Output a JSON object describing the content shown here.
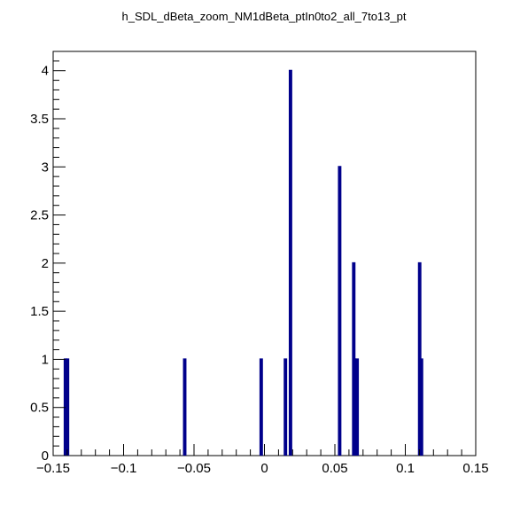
{
  "chart_data": {
    "type": "bar",
    "title": "h_SDL_dBeta_zoom_NM1dBeta_ptIn0to2_all_7to13_pt",
    "xlabel": "",
    "ylabel": "",
    "xlim": [
      -0.15,
      0.15
    ],
    "ylim": [
      0,
      4.2
    ],
    "xticks": [
      -0.15,
      -0.1,
      -0.05,
      0,
      0.05,
      0.1,
      0.15
    ],
    "xtick_labels": [
      "−0.15",
      "−0.1",
      "−0.05",
      "0",
      "0.05",
      "0.1",
      "0.15"
    ],
    "yticks": [
      0,
      0.5,
      1,
      1.5,
      2,
      2.5,
      3,
      3.5,
      4
    ],
    "ytick_labels": [
      "0",
      "0.5",
      "1",
      "1.5",
      "2",
      "2.5",
      "3",
      "3.5",
      "4"
    ],
    "bin_width": 0.0012,
    "bars": [
      {
        "x": -0.1413,
        "value": 1
      },
      {
        "x": -0.1398,
        "value": 1
      },
      {
        "x": -0.0566,
        "value": 1
      },
      {
        "x": -0.0023,
        "value": 1
      },
      {
        "x": 0.0149,
        "value": 1
      },
      {
        "x": 0.0185,
        "value": 4
      },
      {
        "x": 0.0534,
        "value": 3
      },
      {
        "x": 0.0634,
        "value": 2
      },
      {
        "x": 0.064,
        "value": 1
      },
      {
        "x": 0.0658,
        "value": 1
      },
      {
        "x": 0.1102,
        "value": 2
      },
      {
        "x": 0.1115,
        "value": 1
      }
    ],
    "color": "#00008b",
    "grid": false
  }
}
